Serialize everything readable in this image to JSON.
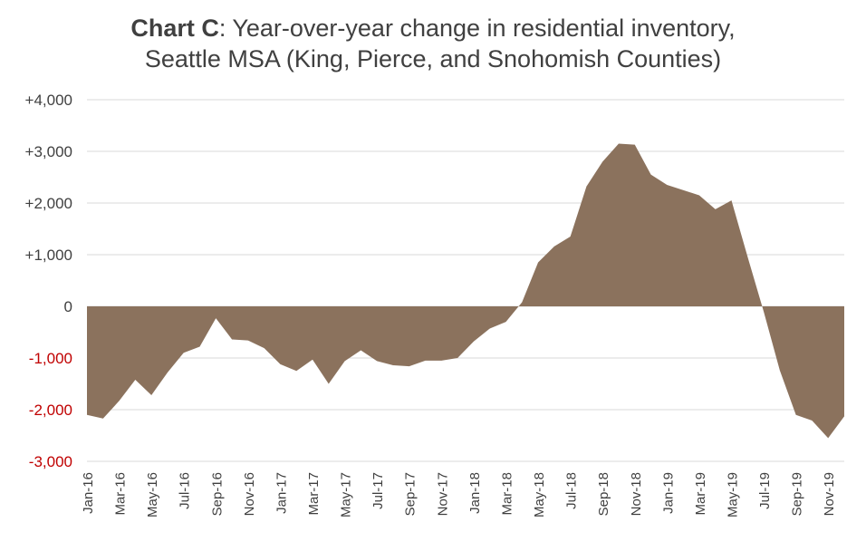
{
  "chart_data": {
    "type": "area",
    "title_bold": "Chart C",
    "title_rest": ": Year-over-year change in residential inventory,",
    "subtitle": "Seattle MSA (King, Pierce, and Snohomish Counties)",
    "xlabel": "",
    "ylabel": "",
    "ylim": [
      -3000,
      4000
    ],
    "yticks": [
      {
        "value": 4000,
        "label": "+4,000"
      },
      {
        "value": 3000,
        "label": "+3,000"
      },
      {
        "value": 2000,
        "label": "+2,000"
      },
      {
        "value": 1000,
        "label": "+1,000"
      },
      {
        "value": 0,
        "label": "0"
      },
      {
        "value": -1000,
        "label": "-1,000"
      },
      {
        "value": -2000,
        "label": "-2,000"
      },
      {
        "value": -3000,
        "label": "-3,000"
      }
    ],
    "xtick_labels": [
      "Jan-16",
      "Mar-16",
      "May-16",
      "Jul-16",
      "Sep-16",
      "Nov-16",
      "Jan-17",
      "Mar-17",
      "May-17",
      "Jul-17",
      "Sep-17",
      "Nov-17",
      "Jan-18",
      "Mar-18",
      "May-18",
      "Jul-18",
      "Sep-18",
      "Nov-18",
      "Jan-19",
      "Mar-19",
      "May-19",
      "Jul-19",
      "Sep-19",
      "Nov-19"
    ],
    "x": [
      "Jan-16",
      "Feb-16",
      "Mar-16",
      "Apr-16",
      "May-16",
      "Jun-16",
      "Jul-16",
      "Aug-16",
      "Sep-16",
      "Oct-16",
      "Nov-16",
      "Dec-16",
      "Jan-17",
      "Feb-17",
      "Mar-17",
      "Apr-17",
      "May-17",
      "Jun-17",
      "Jul-17",
      "Aug-17",
      "Sep-17",
      "Oct-17",
      "Nov-17",
      "Dec-17",
      "Jan-18",
      "Feb-18",
      "Mar-18",
      "Apr-18",
      "May-18",
      "Jun-18",
      "Jul-18",
      "Aug-18",
      "Sep-18",
      "Oct-18",
      "Nov-18",
      "Dec-18",
      "Jan-19",
      "Feb-19",
      "Mar-19",
      "Apr-19",
      "May-19",
      "Jun-19",
      "Jul-19",
      "Aug-19",
      "Sep-19",
      "Oct-19",
      "Nov-19",
      "Dec-19"
    ],
    "values": [
      -2100,
      -2170,
      -1830,
      -1420,
      -1720,
      -1280,
      -900,
      -780,
      -230,
      -640,
      -660,
      -810,
      -1120,
      -1250,
      -1030,
      -1500,
      -1060,
      -850,
      -1060,
      -1140,
      -1160,
      -1050,
      -1050,
      -1000,
      -680,
      -430,
      -300,
      80,
      850,
      1160,
      1350,
      2320,
      2800,
      3150,
      3130,
      2550,
      2350,
      2250,
      2150,
      1880,
      2050,
      960,
      -100,
      -1240,
      -2100,
      -2210,
      -2550,
      -2130
    ],
    "colors": {
      "area": "#8b725d",
      "grid": "#d9d9d9",
      "tick_text": "#404040",
      "negative_tick_text": "#c00000"
    },
    "grid": true
  }
}
